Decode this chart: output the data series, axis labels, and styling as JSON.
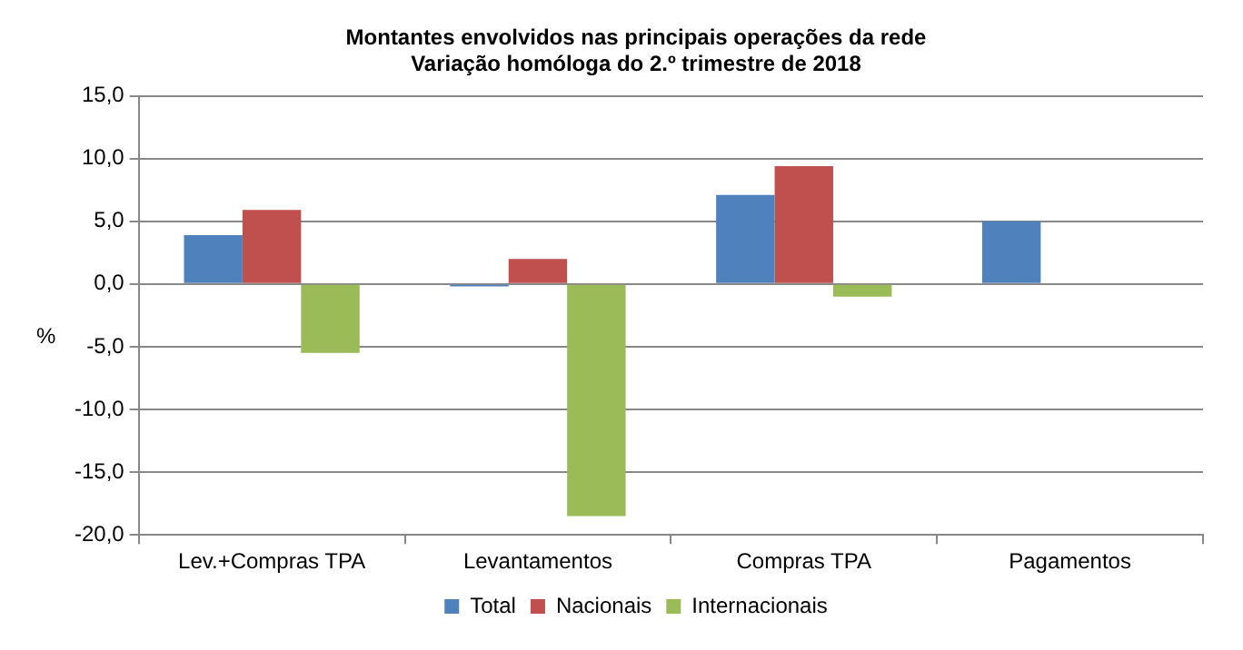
{
  "chart_data": {
    "type": "bar",
    "title": [
      "Montantes envolvidos nas principais operações da rede",
      "Variação homóloga do 2.º trimestre de 2018"
    ],
    "ylabel": "%",
    "categories": [
      "Lev.+Compras TPA",
      "Levantamentos",
      "Compras TPA",
      "Pagamentos"
    ],
    "series": [
      {
        "name": "Total",
        "color": "#4f81bd",
        "values": [
          3.9,
          -0.2,
          7.1,
          5.0
        ]
      },
      {
        "name": "Nacionais",
        "color": "#c0504d",
        "values": [
          5.9,
          2.0,
          9.4,
          null
        ]
      },
      {
        "name": "Internacionais",
        "color": "#9bbb59",
        "values": [
          -5.5,
          -18.5,
          -1.0,
          null
        ]
      }
    ],
    "ylim": [
      -20,
      15
    ],
    "yticks": [
      {
        "value": -20,
        "label": "-20,0"
      },
      {
        "value": -15,
        "label": "-15,0"
      },
      {
        "value": -10,
        "label": "-10,0"
      },
      {
        "value": -5,
        "label": "-5,0"
      },
      {
        "value": 0,
        "label": "0,0"
      },
      {
        "value": 5,
        "label": "5,0"
      },
      {
        "value": 10,
        "label": "10,0"
      },
      {
        "value": 15,
        "label": "15,0"
      }
    ],
    "grid": "y",
    "legend": "bottom"
  }
}
